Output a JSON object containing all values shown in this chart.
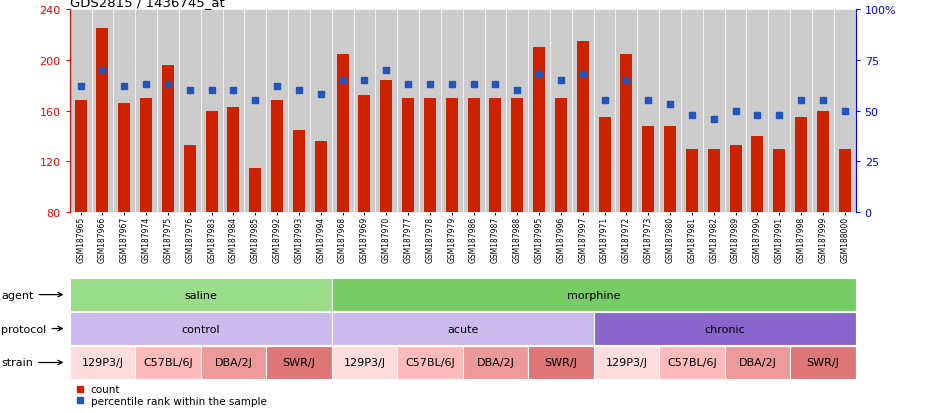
{
  "title": "GDS2815 / 1436745_at",
  "gsm_ids": [
    "GSM187965",
    "GSM187966",
    "GSM187967",
    "GSM187974",
    "GSM187975",
    "GSM187976",
    "GSM187983",
    "GSM187984",
    "GSM187985",
    "GSM187992",
    "GSM187993",
    "GSM187994",
    "GSM187968",
    "GSM187969",
    "GSM187970",
    "GSM187977",
    "GSM187978",
    "GSM187979",
    "GSM187986",
    "GSM187987",
    "GSM187988",
    "GSM187995",
    "GSM187996",
    "GSM187997",
    "GSM187971",
    "GSM187972",
    "GSM187973",
    "GSM187980",
    "GSM187981",
    "GSM187982",
    "GSM187989",
    "GSM187990",
    "GSM187991",
    "GSM187998",
    "GSM187999",
    "GSM188000"
  ],
  "bar_values": [
    168,
    225,
    166,
    170,
    196,
    133,
    160,
    163,
    115,
    168,
    145,
    136,
    205,
    172,
    184,
    170,
    170,
    170,
    170,
    170,
    170,
    210,
    170,
    215,
    155,
    205,
    148,
    148,
    130,
    130,
    133,
    140,
    130,
    155,
    160,
    130
  ],
  "percentile_values": [
    62,
    70,
    62,
    63,
    63,
    60,
    60,
    60,
    55,
    62,
    60,
    58,
    65,
    65,
    70,
    63,
    63,
    63,
    63,
    63,
    60,
    68,
    65,
    68,
    55,
    65,
    55,
    53,
    48,
    46,
    50,
    48,
    48,
    55,
    55,
    50
  ],
  "ylim_left": [
    80,
    240
  ],
  "ylim_right": [
    0,
    100
  ],
  "yticks_left": [
    80,
    120,
    160,
    200,
    240
  ],
  "yticks_right": [
    0,
    25,
    50,
    75,
    100
  ],
  "ytick_right_labels": [
    "0",
    "25",
    "50",
    "75",
    "100%"
  ],
  "bar_color": "#cc2200",
  "dot_color": "#2255bb",
  "agent_rows": [
    {
      "label": "saline",
      "start": 0,
      "end": 12,
      "color": "#99dd88"
    },
    {
      "label": "morphine",
      "start": 12,
      "end": 36,
      "color": "#77cc66"
    }
  ],
  "protocol_rows": [
    {
      "label": "control",
      "start": 0,
      "end": 12,
      "color": "#ccbbee"
    },
    {
      "label": "acute",
      "start": 12,
      "end": 24,
      "color": "#ccbbee"
    },
    {
      "label": "chronic",
      "start": 24,
      "end": 36,
      "color": "#8866cc"
    }
  ],
  "strain_rows": [
    {
      "label": "129P3/J",
      "start": 0,
      "end": 3,
      "color": "#ffdddd"
    },
    {
      "label": "C57BL/6J",
      "start": 3,
      "end": 6,
      "color": "#ffbbbb"
    },
    {
      "label": "DBA/2J",
      "start": 6,
      "end": 9,
      "color": "#ee9999"
    },
    {
      "label": "SWR/J",
      "start": 9,
      "end": 12,
      "color": "#dd7777"
    },
    {
      "label": "129P3/J",
      "start": 12,
      "end": 15,
      "color": "#ffdddd"
    },
    {
      "label": "C57BL/6J",
      "start": 15,
      "end": 18,
      "color": "#ffbbbb"
    },
    {
      "label": "DBA/2J",
      "start": 18,
      "end": 21,
      "color": "#ee9999"
    },
    {
      "label": "SWR/J",
      "start": 21,
      "end": 24,
      "color": "#dd7777"
    },
    {
      "label": "129P3/J",
      "start": 24,
      "end": 27,
      "color": "#ffdddd"
    },
    {
      "label": "C57BL/6J",
      "start": 27,
      "end": 30,
      "color": "#ffbbbb"
    },
    {
      "label": "DBA/2J",
      "start": 30,
      "end": 33,
      "color": "#ee9999"
    },
    {
      "label": "SWR/J",
      "start": 33,
      "end": 36,
      "color": "#dd7777"
    }
  ],
  "row_labels": [
    "agent",
    "protocol",
    "strain"
  ],
  "legend_count_color": "#cc2200",
  "legend_pct_color": "#2255bb"
}
